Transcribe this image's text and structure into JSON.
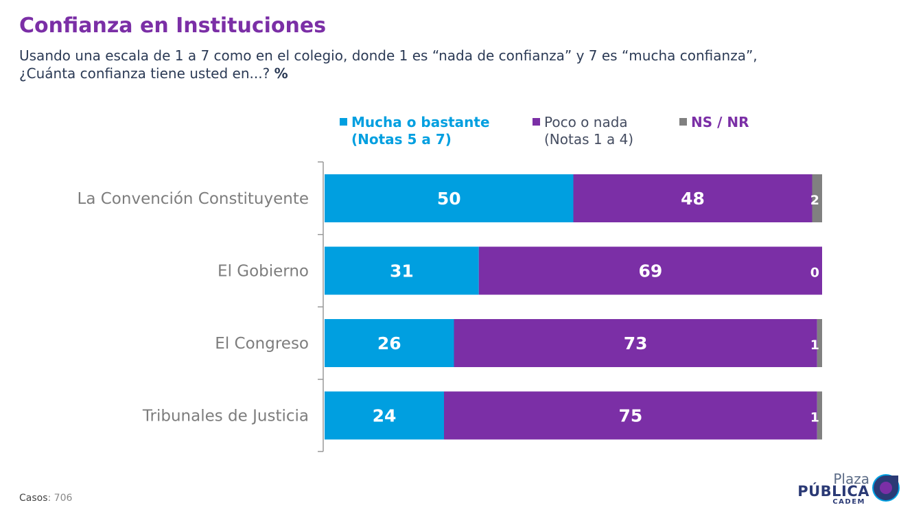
{
  "title": "Confianza en Instituciones",
  "subtitle_line1": "Usando una escala de 1 a 7 como en el colegio, donde 1 es “nada de confianza” y 7 es “mucha confianza”,",
  "subtitle_line2": "¿Cuánta confianza tiene usted en...?",
  "subtitle_unit": "%",
  "legend": [
    {
      "line1": "Mucha o bastante",
      "line2": "(Notas 5 a 7)",
      "color": "#009fe0"
    },
    {
      "line1": "Poco o nada",
      "line2": "(Notas 1 a 4)",
      "color": "#7b2fa6"
    },
    {
      "line1": "NS / NR",
      "line2": "",
      "color": "#808080"
    }
  ],
  "chart_data": {
    "type": "bar",
    "orientation": "horizontal",
    "stacked": true,
    "categories": [
      "La Convención Constituyente",
      "El Gobierno",
      "El Congreso",
      "Tribunales de Justicia"
    ],
    "series": [
      {
        "name": "Mucha o bastante (Notas 5 a 7)",
        "values": [
          50,
          31,
          26,
          24
        ],
        "color": "#009fe0"
      },
      {
        "name": "Poco o nada (Notas 1 a 4)",
        "values": [
          48,
          69,
          73,
          75
        ],
        "color": "#7b2fa6"
      },
      {
        "name": "NS / NR",
        "values": [
          2,
          0,
          1,
          1
        ],
        "color": "#808080"
      }
    ],
    "xlim": [
      0,
      100
    ],
    "legend_position": "top",
    "grid": false
  },
  "footer": {
    "casos_label": "Casos",
    "casos_value": ": 706"
  },
  "logo": {
    "line1": "Plaza",
    "line2": "PÚBLICA",
    "line3": "CADEM"
  }
}
